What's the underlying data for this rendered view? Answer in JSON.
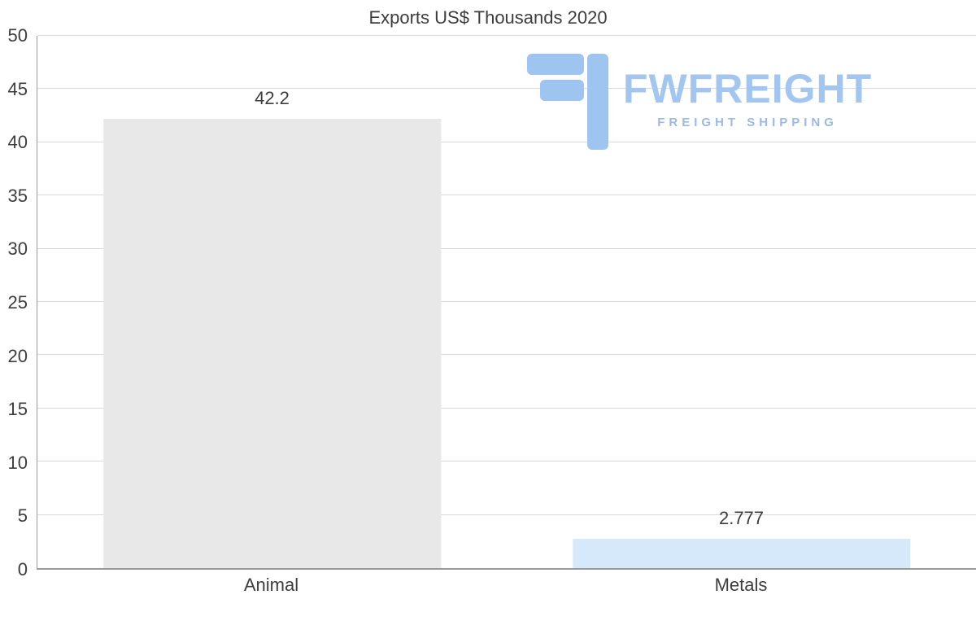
{
  "chart_data": {
    "type": "bar",
    "title": "Exports US$ Thousands 2020",
    "categories": [
      "Animal",
      "Metals"
    ],
    "values": [
      42.2,
      2.777
    ],
    "value_labels": [
      "42.2",
      "2.777"
    ],
    "bar_colors": [
      "#e8e8e8",
      "#d6e9fb"
    ],
    "ylim": [
      0,
      50
    ],
    "ytick_step": 5,
    "grid": true,
    "legend": "none"
  },
  "logo": {
    "name": "FWFREIGHT",
    "tagline": "FREIGHT SHIPPING",
    "color": "#a3c6f1"
  }
}
